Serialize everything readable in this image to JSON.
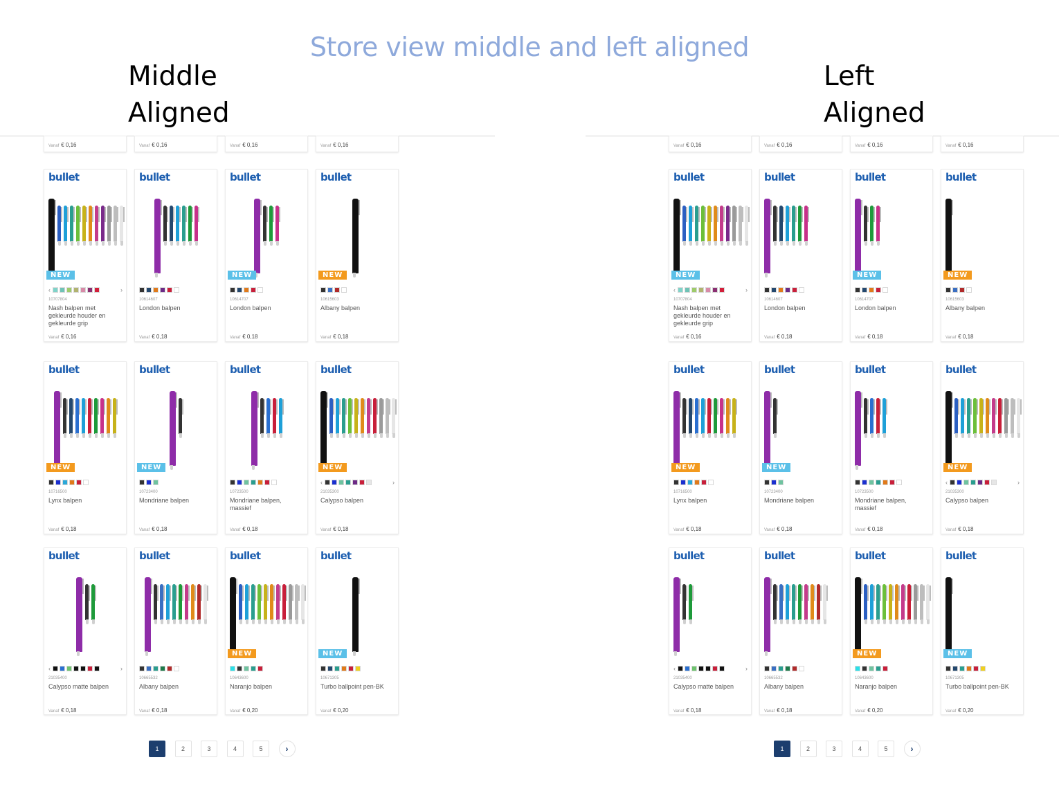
{
  "slide_title": "Store view middle and left aligned",
  "panels": [
    {
      "label_line1": "Middle",
      "label_line2": "Aligned",
      "alignment": "middle"
    },
    {
      "label_line1": "Left",
      "label_line2": "Aligned",
      "alignment": "left"
    }
  ],
  "price_from_label": "Vanaf",
  "top_row_prices": [
    "€ 0,16",
    "€ 0,16",
    "€ 0,16",
    "€ 0,16"
  ],
  "brand": "bullet",
  "badge_text": "NEW",
  "colors": {
    "badge_blue": "#5bc0e8",
    "badge_orange": "#f39a1e",
    "brand_blue": "#1e5fb0",
    "pager_active": "#1c3e6e"
  },
  "products": [
    {
      "sku": "10707804",
      "name": "Nash balpen met gekleurde houder en gekleurde grip",
      "price": "€ 0,16",
      "badge": "blue",
      "carousel": true,
      "swatches": [
        "#7fd3c9",
        "#6fc3b6",
        "#9ecb6b",
        "#b1b36f",
        "#d88aa8",
        "#8b2f72",
        "#d21f3a"
      ],
      "pens": [
        "#111111",
        "#2b5fc2",
        "#1ea0d8",
        "#2a9e8f",
        "#6cbf3a",
        "#c7b21a",
        "#e08b1a",
        "#c43b8b",
        "#7a2a8a",
        "#9a9a9a",
        "#bdbdbd",
        "#e6e6e6"
      ],
      "hero": "#111111"
    },
    {
      "sku": "10614607",
      "name": "London balpen",
      "price": "€ 0,18",
      "badge": "none",
      "carousel": false,
      "swatches": [
        "#333333",
        "#24486e",
        "#e07a1a",
        "#6c2a86",
        "#c81f3a",
        "#ffffff"
      ],
      "pens": [
        "#8e2ca8",
        "#333333",
        "#24486e",
        "#1ea0d8",
        "#2a9e8f",
        "#1e9a3a",
        "#c7318a"
      ],
      "hero": "#8e2ca8"
    },
    {
      "sku": "10614707",
      "name": "London balpen",
      "price": "€ 0,18",
      "badge": "blue",
      "carousel": false,
      "swatches": [
        "#333333",
        "#24486e",
        "#e07a1a",
        "#c81f3a",
        "#ffffff"
      ],
      "pens": [
        "#8e2ca8",
        "#333333",
        "#1e9a3a",
        "#c7318a"
      ],
      "hero": "#8e2ca8"
    },
    {
      "sku": "10615603",
      "name": "Albany balpen",
      "price": "€ 0,18",
      "badge": "orange",
      "carousel": false,
      "swatches": [
        "#333333",
        "#3a6fc2",
        "#b02a2a",
        "#ffffff"
      ],
      "pens": [
        "#111111"
      ],
      "hero": "#111111"
    },
    {
      "sku": "10716500",
      "name": "Lynx balpen",
      "price": "€ 0,18",
      "badge": "orange",
      "carousel": false,
      "swatches": [
        "#333333",
        "#1a2fd0",
        "#2aa8d8",
        "#e07a1a",
        "#c81f3a",
        "#ffffff"
      ],
      "pens": [
        "#8e2ca8",
        "#333333",
        "#24486e",
        "#2a6fd0",
        "#1ea0d8",
        "#c81f3a",
        "#1e9a3a",
        "#c7318a",
        "#e08b1a",
        "#c7b21a"
      ],
      "hero": "#8e2ca8"
    },
    {
      "sku": "10723400",
      "name": "Mondriane balpen",
      "price": "€ 0,18",
      "badge": "blue",
      "carousel": false,
      "swatches": [
        "#333333",
        "#1a2fd0",
        "#6fc3a0"
      ],
      "pens": [
        "#8e2ca8",
        "#333333"
      ],
      "hero": "#8e2ca8"
    },
    {
      "sku": "10723500",
      "name": "Mondriane balpen, massief",
      "price": "€ 0,18",
      "badge": "none",
      "carousel": false,
      "swatches": [
        "#333333",
        "#1a2fd0",
        "#6fc3a0",
        "#2a9e8f",
        "#e07a1a",
        "#c81f3a",
        "#ffffff"
      ],
      "pens": [
        "#8e2ca8",
        "#333333",
        "#2a6fd0",
        "#c81f3a",
        "#1ea0d8"
      ],
      "hero": "#8e2ca8"
    },
    {
      "sku": "21035300",
      "name": "Calypso balpen",
      "price": "€ 0,18",
      "badge": "orange",
      "carousel": true,
      "swatches": [
        "#333333",
        "#1a2fd0",
        "#6fc3a0",
        "#2a9e8f",
        "#6c2a86",
        "#c81f3a",
        "#e6e6e6"
      ],
      "pens": [
        "#111111",
        "#2b5fc2",
        "#1ea0d8",
        "#2a9e8f",
        "#6cbf3a",
        "#c7b21a",
        "#e08b1a",
        "#c43b8b",
        "#c81f3a",
        "#9a9a9a",
        "#bdbdbd",
        "#e6e6e6"
      ],
      "hero": "#111111"
    },
    {
      "sku": "21035400",
      "name": "Calypso matte balpen",
      "price": "€ 0,18",
      "badge": "none",
      "carousel": true,
      "swatches": [
        "#111111",
        "#2a6fd0",
        "#6fc36f",
        "#111111",
        "#111111",
        "#c81f3a",
        "#111111"
      ],
      "pens": [
        "#8e2ca8",
        "#333333",
        "#1e9a3a"
      ],
      "hero": "#8e2ca8"
    },
    {
      "sku": "10665532",
      "name": "Albany balpen",
      "price": "€ 0,18",
      "badge": "none",
      "carousel": false,
      "swatches": [
        "#333333",
        "#3a6fc2",
        "#2a9e8f",
        "#1e7a4a",
        "#b02a2a",
        "#ffffff"
      ],
      "pens": [
        "#8e2ca8",
        "#333333",
        "#3a6fc2",
        "#1ea0d8",
        "#2a9e8f",
        "#1e9a3a",
        "#c43b8b",
        "#e08b1a",
        "#b02a2a",
        "#e6e6e6"
      ],
      "hero": "#8e2ca8"
    },
    {
      "sku": "10643600",
      "name": "Naranjo balpen",
      "price": "€ 0,20",
      "badge": "orange",
      "carousel": false,
      "swatches": [
        "#2ae0e8",
        "#333333",
        "#6fc3a0",
        "#2a9e8f",
        "#c81f3a"
      ],
      "pens": [
        "#111111",
        "#2b5fc2",
        "#1ea0d8",
        "#2a9e8f",
        "#6cbf3a",
        "#c7b21a",
        "#e08b1a",
        "#c43b8b",
        "#c81f3a",
        "#9a9a9a",
        "#bdbdbd",
        "#e6e6e6"
      ],
      "hero": "#111111"
    },
    {
      "sku": "10671305",
      "name": "Turbo ballpoint pen-BK",
      "price": "€ 0,20",
      "badge": "blue",
      "carousel": false,
      "swatches": [
        "#333333",
        "#24486e",
        "#2a9e8f",
        "#e07a1a",
        "#c81f3a",
        "#f0d020"
      ],
      "pens": [
        "#111111"
      ],
      "hero": "#111111"
    }
  ],
  "pagination": {
    "pages": [
      "1",
      "2",
      "3",
      "4",
      "5"
    ],
    "active": "1",
    "next_symbol": "›"
  }
}
